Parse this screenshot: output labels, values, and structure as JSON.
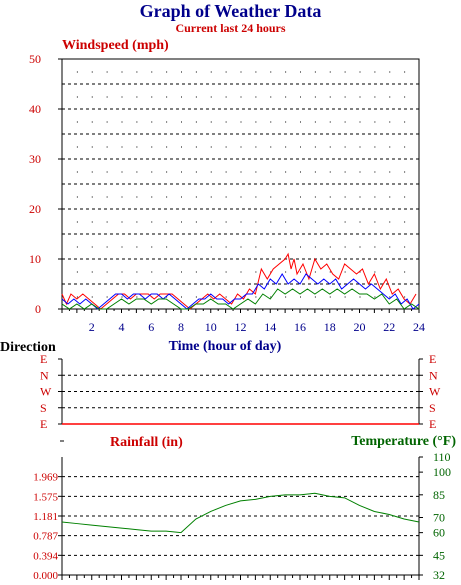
{
  "title": "Graph of Weather Data",
  "subtitle": "Current last 24 hours",
  "colors": {
    "red": "#ff0000",
    "blue": "#0000ff",
    "green": "#008000",
    "darkgreen": "#006400",
    "labelred": "#cc0000",
    "navy": "#00008b",
    "grid": "#000000"
  },
  "chart_data": [
    {
      "type": "line",
      "title": "Windspeed (mph)",
      "xlabel": "Time (hour of day)",
      "ylabel": "Windspeed (mph)",
      "xlim": [
        0,
        24
      ],
      "ylim": [
        0,
        50
      ],
      "x_ticks": [
        "2",
        "4",
        "6",
        "8",
        "10",
        "12",
        "14",
        "16",
        "18",
        "20",
        "22",
        "24"
      ],
      "y_ticks": [
        "0",
        "10",
        "20",
        "30",
        "40",
        "50"
      ],
      "grid": true,
      "series": [
        {
          "color": "red",
          "x": [
            0,
            0.3,
            0.6,
            1,
            1.4,
            1.8,
            2.2,
            2.6,
            3,
            3.4,
            3.8,
            4.2,
            4.6,
            5,
            5.4,
            5.8,
            6.2,
            6.6,
            7,
            7.4,
            7.8,
            8.2,
            8.6,
            9,
            9.4,
            9.8,
            10.2,
            10.6,
            11,
            11.4,
            11.8,
            12.2,
            12.6,
            13,
            13.4,
            13.8,
            14.2,
            14.6,
            15,
            15.2,
            15.4,
            15.6,
            15.8,
            16.2,
            16.6,
            17,
            17.4,
            17.8,
            18.2,
            18.6,
            19,
            19.4,
            19.8,
            20.2,
            20.6,
            21,
            21.4,
            21.8,
            22.2,
            22.6,
            23,
            23.4,
            23.8
          ],
          "y": [
            3,
            1,
            3,
            2,
            3,
            2,
            1,
            0,
            1,
            2,
            3,
            3,
            2,
            3,
            3,
            3,
            2,
            3,
            3,
            3,
            2,
            1,
            0,
            1,
            2,
            3,
            2,
            3,
            2,
            1,
            3,
            2,
            4,
            3,
            8,
            6,
            8,
            9,
            10,
            11,
            8,
            10,
            7,
            9,
            6,
            10,
            8,
            9,
            7,
            6,
            9,
            8,
            7,
            8,
            5,
            7,
            4,
            6,
            3,
            4,
            2,
            1,
            3
          ]
        },
        {
          "color": "blue",
          "x": [
            0,
            0.4,
            0.8,
            1.2,
            1.6,
            2,
            2.4,
            2.8,
            3.2,
            3.6,
            4,
            4.4,
            4.8,
            5.2,
            5.6,
            6,
            6.4,
            6.8,
            7.2,
            7.6,
            8,
            8.4,
            8.8,
            9.2,
            9.6,
            10,
            10.4,
            10.8,
            11.2,
            11.6,
            12,
            12.4,
            12.8,
            13.2,
            13.6,
            14,
            14.4,
            14.8,
            15.2,
            15.6,
            16,
            16.4,
            16.8,
            17.2,
            17.6,
            18,
            18.4,
            18.8,
            19.2,
            19.6,
            20,
            20.4,
            20.8,
            21.2,
            21.6,
            22,
            22.4,
            22.8,
            23.2,
            23.6,
            24
          ],
          "y": [
            2,
            1,
            2,
            1,
            2,
            1,
            0,
            1,
            2,
            3,
            3,
            2,
            3,
            3,
            2,
            3,
            3,
            2,
            3,
            2,
            1,
            0,
            1,
            2,
            2,
            3,
            2,
            2,
            1,
            2,
            2,
            3,
            3,
            5,
            4,
            6,
            5,
            7,
            5,
            6,
            5,
            7,
            6,
            5,
            6,
            5,
            6,
            4,
            5,
            6,
            5,
            4,
            5,
            4,
            3,
            2,
            3,
            1,
            2,
            0,
            1
          ]
        },
        {
          "color": "green",
          "x": [
            0,
            0.5,
            1,
            1.5,
            2,
            2.5,
            3,
            3.5,
            4,
            4.5,
            5,
            5.5,
            6,
            6.5,
            7,
            7.5,
            8,
            8.5,
            9,
            9.5,
            10,
            10.5,
            11,
            11.5,
            12,
            12.5,
            13,
            13.5,
            14,
            14.5,
            15,
            15.5,
            16,
            16.5,
            17,
            17.5,
            18,
            18.5,
            19,
            19.5,
            20,
            20.5,
            21,
            21.5,
            22,
            22.5,
            23,
            23.5,
            24
          ],
          "y": [
            1,
            0,
            1,
            0,
            1,
            0,
            0,
            1,
            2,
            1,
            2,
            2,
            1,
            2,
            2,
            1,
            0,
            0,
            1,
            1,
            2,
            1,
            1,
            0,
            1,
            2,
            1,
            3,
            2,
            4,
            3,
            4,
            3,
            4,
            3,
            4,
            3,
            4,
            3,
            4,
            3,
            3,
            2,
            3,
            1,
            2,
            0,
            1,
            0
          ]
        }
      ]
    },
    {
      "type": "line",
      "title": "Direction",
      "ylabel": "Direction",
      "xlim": [
        0,
        24
      ],
      "y_ticks": [
        "E",
        "N",
        "W",
        "S",
        "E"
      ],
      "grid": true,
      "series": [
        {
          "color": "red",
          "x": [
            0,
            24
          ],
          "y": [
            0,
            0
          ]
        }
      ]
    },
    {
      "type": "line",
      "title": "Rainfall (in) / Temperature (°F)",
      "ylabel": "Rainfall (in)",
      "y2label": "Temperature (°F)",
      "xlim": [
        0,
        24
      ],
      "ylim": [
        0,
        2.362
      ],
      "y2lim": [
        32,
        110
      ],
      "y_ticks": [
        "0.000",
        "0.394",
        "0.787",
        "1.181",
        "1.575",
        "1.969"
      ],
      "y2_ticks": [
        "32",
        "45",
        "60",
        "70",
        "85",
        "100",
        "110"
      ],
      "grid": true,
      "series": [
        {
          "color": "green",
          "x": [
            0,
            1,
            2,
            3,
            4,
            5,
            6,
            7,
            8,
            9,
            10,
            11,
            12,
            13,
            14,
            15,
            16,
            17,
            18,
            19,
            20,
            21,
            22,
            23,
            24
          ],
          "y": [
            67,
            66,
            65,
            64,
            63,
            62,
            61,
            61,
            60,
            69,
            74,
            78,
            81,
            82,
            84,
            85,
            85,
            86,
            84,
            83,
            78,
            74,
            72,
            69,
            67
          ]
        }
      ]
    }
  ]
}
